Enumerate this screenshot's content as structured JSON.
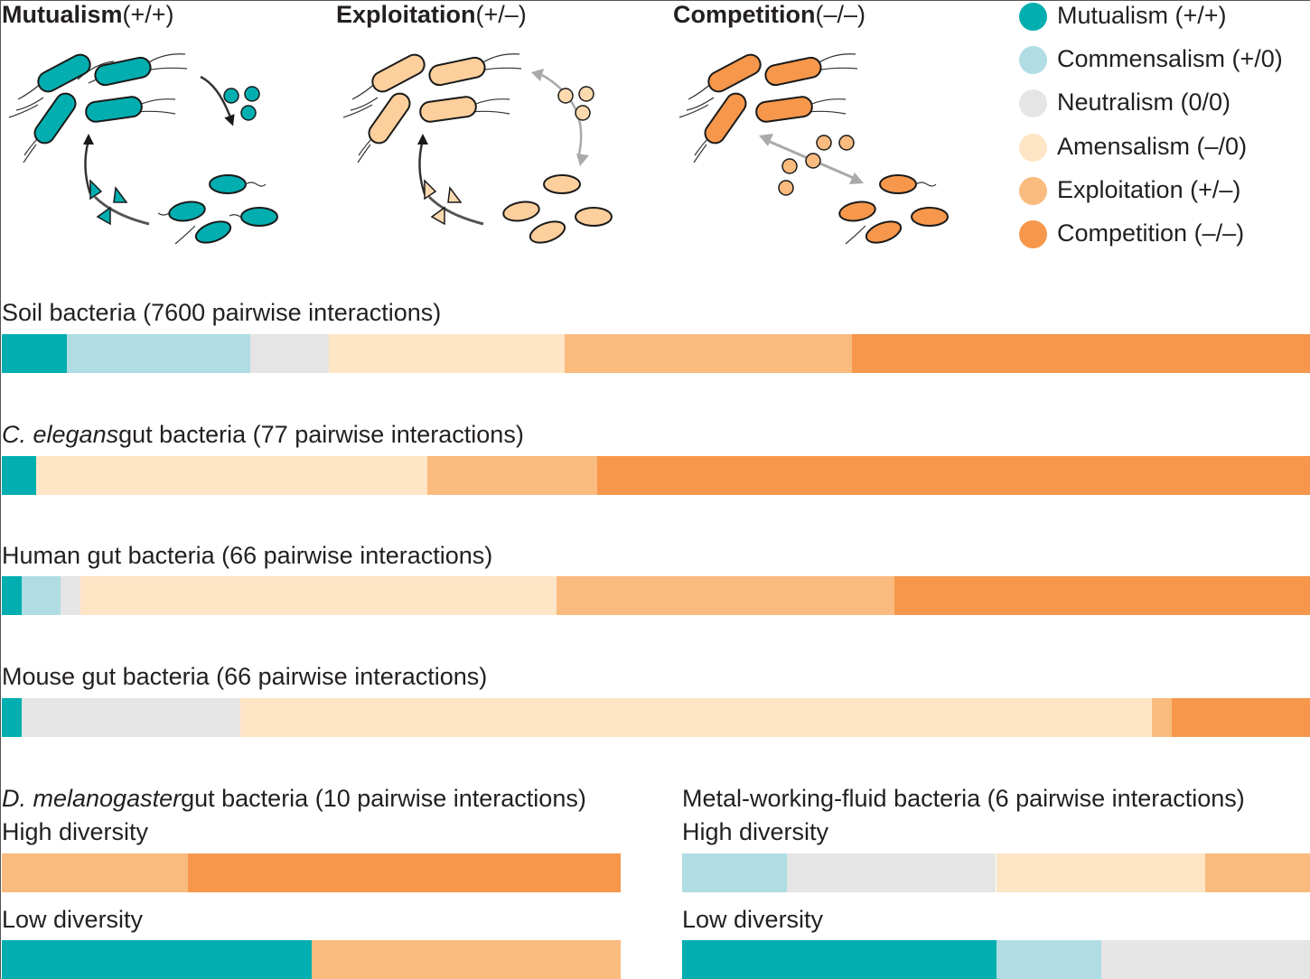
{
  "colors": {
    "mutualism": "#02aeaf",
    "commensalism": "#afdde3",
    "neutralism": "#e5e5e5",
    "amensalism": "#fee5c6",
    "exploitation": "#f9bb7e",
    "competition": "#f6974b"
  },
  "panels": [
    {
      "title": "Mutualism",
      "sign": "(+/+)"
    },
    {
      "title": "Exploitation",
      "sign": "(+/–)"
    },
    {
      "title": "Competition",
      "sign": "(–/–)"
    }
  ],
  "legend": [
    {
      "key": "mutualism",
      "label": "Mutualism (+/+)"
    },
    {
      "key": "commensalism",
      "label": "Commensalism (+/0)"
    },
    {
      "key": "neutralism",
      "label": "Neutralism (0/0)"
    },
    {
      "key": "amensalism",
      "label": "Amensalism (–/0)"
    },
    {
      "key": "exploitation",
      "label": "Exploitation (+/–)"
    },
    {
      "key": "competition",
      "label": "Competition (–/–)"
    }
  ],
  "chart_data": {
    "type": "bar",
    "orientation": "horizontal-stacked-100%",
    "categories": [
      "Mutualism (+/+)",
      "Commensalism (+/0)",
      "Neutralism (0/0)",
      "Amensalism (–/0)",
      "Exploitation (+/–)",
      "Competition (–/–)"
    ],
    "unit": "percent of pairwise interactions",
    "legend_position": "top-right",
    "bars": [
      {
        "label_italic": "",
        "label": "Soil bacteria (7600 pairwise interactions)",
        "values": [
          5,
          14,
          6,
          18,
          22,
          35
        ]
      },
      {
        "label_italic": "C. elegans",
        "label": "gut bacteria (77 pairwise interactions)",
        "values": [
          2.6,
          0,
          0,
          29.9,
          13,
          54.5
        ]
      },
      {
        "label_italic": "",
        "label": "Human gut bacteria (66 pairwise interactions)",
        "values": [
          1.5,
          3,
          1.5,
          36.4,
          25.8,
          31.8
        ]
      },
      {
        "label_italic": "",
        "label": "Mouse gut bacteria (66 pairwise interactions)",
        "values": [
          1.5,
          0,
          16.7,
          69.7,
          1.5,
          10.6
        ]
      }
    ],
    "groups": [
      {
        "title_italic": "D. melanogaster",
        "title": "gut bacteria (10 pairwise interactions)",
        "bars": [
          {
            "label": "High diversity",
            "values": [
              0,
              0,
              0,
              0,
              30,
              70
            ]
          },
          {
            "label": "Low diversity",
            "values": [
              50,
              0,
              0,
              0,
              50,
              0
            ]
          }
        ]
      },
      {
        "title_italic": "",
        "title": "Metal-working-fluid bacteria (6 pairwise interactions)",
        "bars": [
          {
            "label": "High diversity",
            "values": [
              0,
              16.7,
              33.3,
              33.3,
              16.7,
              0
            ]
          },
          {
            "label": "Low diversity",
            "values": [
              50,
              16.7,
              33.3,
              0,
              0,
              0
            ]
          }
        ]
      }
    ]
  }
}
